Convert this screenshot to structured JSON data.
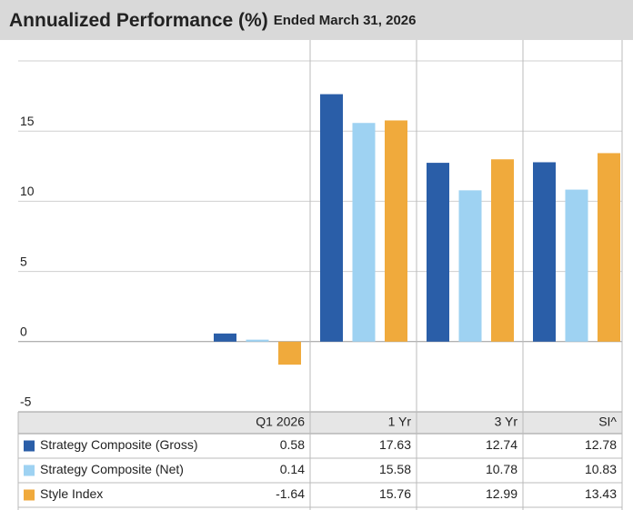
{
  "chart_data": {
    "type": "bar",
    "title": "Annualized Performance (%)",
    "subtitle": "Ended March 31, 2026",
    "categories": [
      "Q1 2026",
      "1 Yr",
      "3 Yr",
      "SI^"
    ],
    "series": [
      {
        "name": "Strategy Composite (Gross)",
        "color": "#2a5ea8",
        "values": [
          0.58,
          17.63,
          12.74,
          12.78
        ]
      },
      {
        "name": "Strategy Composite (Net)",
        "color": "#9ed2f2",
        "values": [
          0.14,
          15.58,
          10.78,
          10.83
        ]
      },
      {
        "name": "Style Index",
        "color": "#f0aa3c",
        "values": [
          -1.64,
          15.76,
          12.99,
          13.43
        ]
      }
    ],
    "ylim": [
      -5,
      20
    ],
    "yticks": [
      -5,
      0,
      5,
      10,
      15
    ],
    "grid": true
  }
}
